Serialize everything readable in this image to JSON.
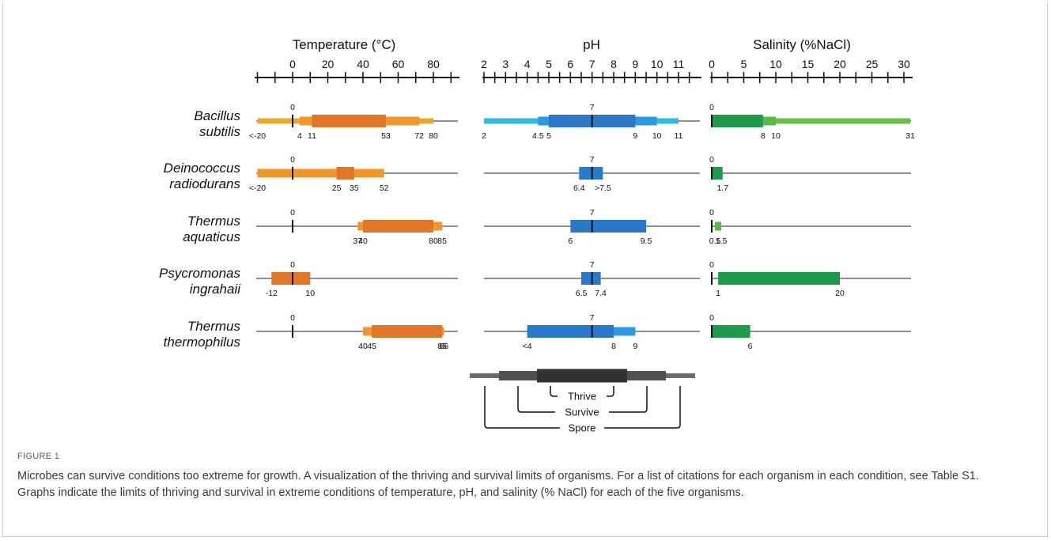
{
  "figure": {
    "label": "FIGURE 1",
    "caption": "Microbes can survive conditions too extreme for growth. A visualization of the thriving and survival limits of organisms. For a list of citations for each organism in each condition, see Table S1. Graphs indicate the limits of thriving and survival in extreme conditions of temperature, pH, and salinity (% NaCl) for each of the five organisms."
  },
  "colors": {
    "temperature": {
      "spore": "#e8a832",
      "survive": "#f0962e",
      "thrive": "#e0762a"
    },
    "ph": {
      "spore": "#35b8df",
      "survive": "#2f99e0",
      "thrive": "#2b78c8"
    },
    "salinity": {
      "spore": "#6abf4b",
      "survive": "#5cb748",
      "thrive": "#1f9a4a"
    },
    "legend": {
      "spore": "#6b6b6b",
      "survive": "#505050",
      "thrive": "#323232"
    }
  },
  "chart_data": {
    "type": "range-bar",
    "organisms": [
      "Bacillus subtilis",
      "Deinococcus radiodurans",
      "Thermus aquaticus",
      "Psycromonas ingrahaii",
      "Thermus thermophilus"
    ],
    "panels": [
      {
        "key": "temperature",
        "title": "Temperature (°C)",
        "axis": {
          "min": -20,
          "max": 90,
          "minor_step": 10,
          "labels": [
            0,
            20,
            40,
            60,
            80
          ],
          "reference": 0
        },
        "rows": [
          {
            "organism": "Bacillus subtilis",
            "reference_label": "0",
            "spore": [
              -20,
              80
            ],
            "survive": [
              4,
              72
            ],
            "thrive": [
              11,
              53
            ],
            "value_labels": [
              {
                "value": -20,
                "text": "<-20"
              },
              {
                "value": 4,
                "text": "4"
              },
              {
                "value": 11,
                "text": "11"
              },
              {
                "value": 53,
                "text": "53"
              },
              {
                "value": 72,
                "text": "72"
              },
              {
                "value": 80,
                "text": "80"
              }
            ]
          },
          {
            "organism": "Deinococcus radiodurans",
            "reference_label": "0",
            "spore": null,
            "survive": [
              -20,
              52
            ],
            "thrive": [
              25,
              35
            ],
            "value_labels": [
              {
                "value": -20,
                "text": "<-20"
              },
              {
                "value": 25,
                "text": "25"
              },
              {
                "value": 35,
                "text": "35"
              },
              {
                "value": 52,
                "text": "52"
              }
            ]
          },
          {
            "organism": "Thermus aquaticus",
            "reference_label": "0",
            "spore": null,
            "survive": [
              37,
              85
            ],
            "thrive": [
              40,
              80
            ],
            "value_labels": [
              {
                "value": 37,
                "text": "37"
              },
              {
                "value": 40,
                "text": "40"
              },
              {
                "value": 80,
                "text": "80"
              },
              {
                "value": 85,
                "text": "85"
              }
            ]
          },
          {
            "organism": "Psycromonas ingrahaii",
            "reference_label": "0",
            "spore": null,
            "survive": null,
            "thrive": [
              -12,
              10
            ],
            "value_labels": [
              {
                "value": -12,
                "text": "-12"
              },
              {
                "value": 10,
                "text": "10"
              }
            ]
          },
          {
            "organism": "Thermus thermophilus",
            "reference_label": "0",
            "spore": null,
            "survive": [
              40,
              86
            ],
            "thrive": [
              45,
              85
            ],
            "value_labels": [
              {
                "value": 40,
                "text": "40"
              },
              {
                "value": 45,
                "text": "45"
              },
              {
                "value": 85,
                "text": "85"
              },
              {
                "value": 86,
                "text": "86"
              }
            ]
          }
        ]
      },
      {
        "key": "ph",
        "title": "pH",
        "axis": {
          "min": 2,
          "max": 11.5,
          "minor_step": 0.5,
          "labels": [
            2,
            3,
            4,
            5,
            6,
            7,
            8,
            9,
            10,
            11
          ],
          "reference": 7
        },
        "rows": [
          {
            "organism": "Bacillus subtilis",
            "reference_label": "7",
            "spore": [
              2,
              11
            ],
            "survive": [
              4.5,
              10
            ],
            "thrive": [
              5,
              9
            ],
            "value_labels": [
              {
                "value": 2,
                "text": "2"
              },
              {
                "value": 4.5,
                "text": "4.5"
              },
              {
                "value": 5,
                "text": "5"
              },
              {
                "value": 9,
                "text": "9"
              },
              {
                "value": 10,
                "text": "10"
              },
              {
                "value": 11,
                "text": "11"
              }
            ]
          },
          {
            "organism": "Deinococcus radiodurans",
            "reference_label": "7",
            "spore": null,
            "survive": null,
            "thrive": [
              6.4,
              7.5
            ],
            "value_labels": [
              {
                "value": 6.4,
                "text": "6.4"
              },
              {
                "value": 7.5,
                "text": ">7.5"
              }
            ]
          },
          {
            "organism": "Thermus aquaticus",
            "reference_label": "7",
            "spore": null,
            "survive": null,
            "thrive": [
              6,
              9.5
            ],
            "value_labels": [
              {
                "value": 6,
                "text": "6"
              },
              {
                "value": 9.5,
                "text": "9.5"
              }
            ]
          },
          {
            "organism": "Psycromonas ingrahaii",
            "reference_label": "7",
            "spore": null,
            "survive": null,
            "thrive": [
              6.5,
              7.4
            ],
            "value_labels": [
              {
                "value": 6.5,
                "text": "6.5"
              },
              {
                "value": 7.4,
                "text": "7.4"
              }
            ]
          },
          {
            "organism": "Thermus thermophilus",
            "reference_label": "7",
            "spore": null,
            "survive": [
              4,
              9
            ],
            "thrive": [
              4,
              8
            ],
            "value_labels": [
              {
                "value": 4,
                "text": "<4"
              },
              {
                "value": 8,
                "text": "8"
              },
              {
                "value": 9,
                "text": "9"
              }
            ]
          }
        ]
      },
      {
        "key": "salinity",
        "title": "Salinity (%NaCl)",
        "axis": {
          "min": 0,
          "max": 31,
          "minor_step": 2.5,
          "labels": [
            0,
            5,
            10,
            15,
            20,
            25,
            30
          ],
          "reference": 0
        },
        "rows": [
          {
            "organism": "Bacillus subtilis",
            "reference_label": "0",
            "spore": [
              0,
              31
            ],
            "survive": [
              0,
              10
            ],
            "thrive": [
              0,
              8
            ],
            "value_labels": [
              {
                "value": 8,
                "text": "8"
              },
              {
                "value": 10,
                "text": "10"
              },
              {
                "value": 31,
                "text": "31"
              }
            ]
          },
          {
            "organism": "Deinococcus radiodurans",
            "reference_label": "0",
            "spore": null,
            "survive": null,
            "thrive": [
              0,
              1.7
            ],
            "value_labels": [
              {
                "value": 1.7,
                "text": "1.7"
              }
            ]
          },
          {
            "organism": "Thermus aquaticus",
            "reference_label": "0",
            "spore": null,
            "survive": [
              0.5,
              1.5
            ],
            "thrive": null,
            "value_labels": [
              {
                "value": 0.5,
                "text": "0.5"
              },
              {
                "value": 1.5,
                "text": "1.5"
              }
            ]
          },
          {
            "organism": "Psycromonas ingrahaii",
            "reference_label": "0",
            "spore": null,
            "survive": null,
            "thrive": [
              1,
              20
            ],
            "value_labels": [
              {
                "value": 1,
                "text": "1"
              },
              {
                "value": 20,
                "text": "20"
              }
            ]
          },
          {
            "organism": "Thermus thermophilus",
            "reference_label": "0",
            "spore": null,
            "survive": null,
            "thrive": [
              0,
              6
            ],
            "value_labels": [
              {
                "value": 6,
                "text": "6"
              }
            ]
          }
        ]
      }
    ],
    "legend": {
      "thrive": "Thrive",
      "survive": "Survive",
      "spore": "Spore"
    }
  }
}
